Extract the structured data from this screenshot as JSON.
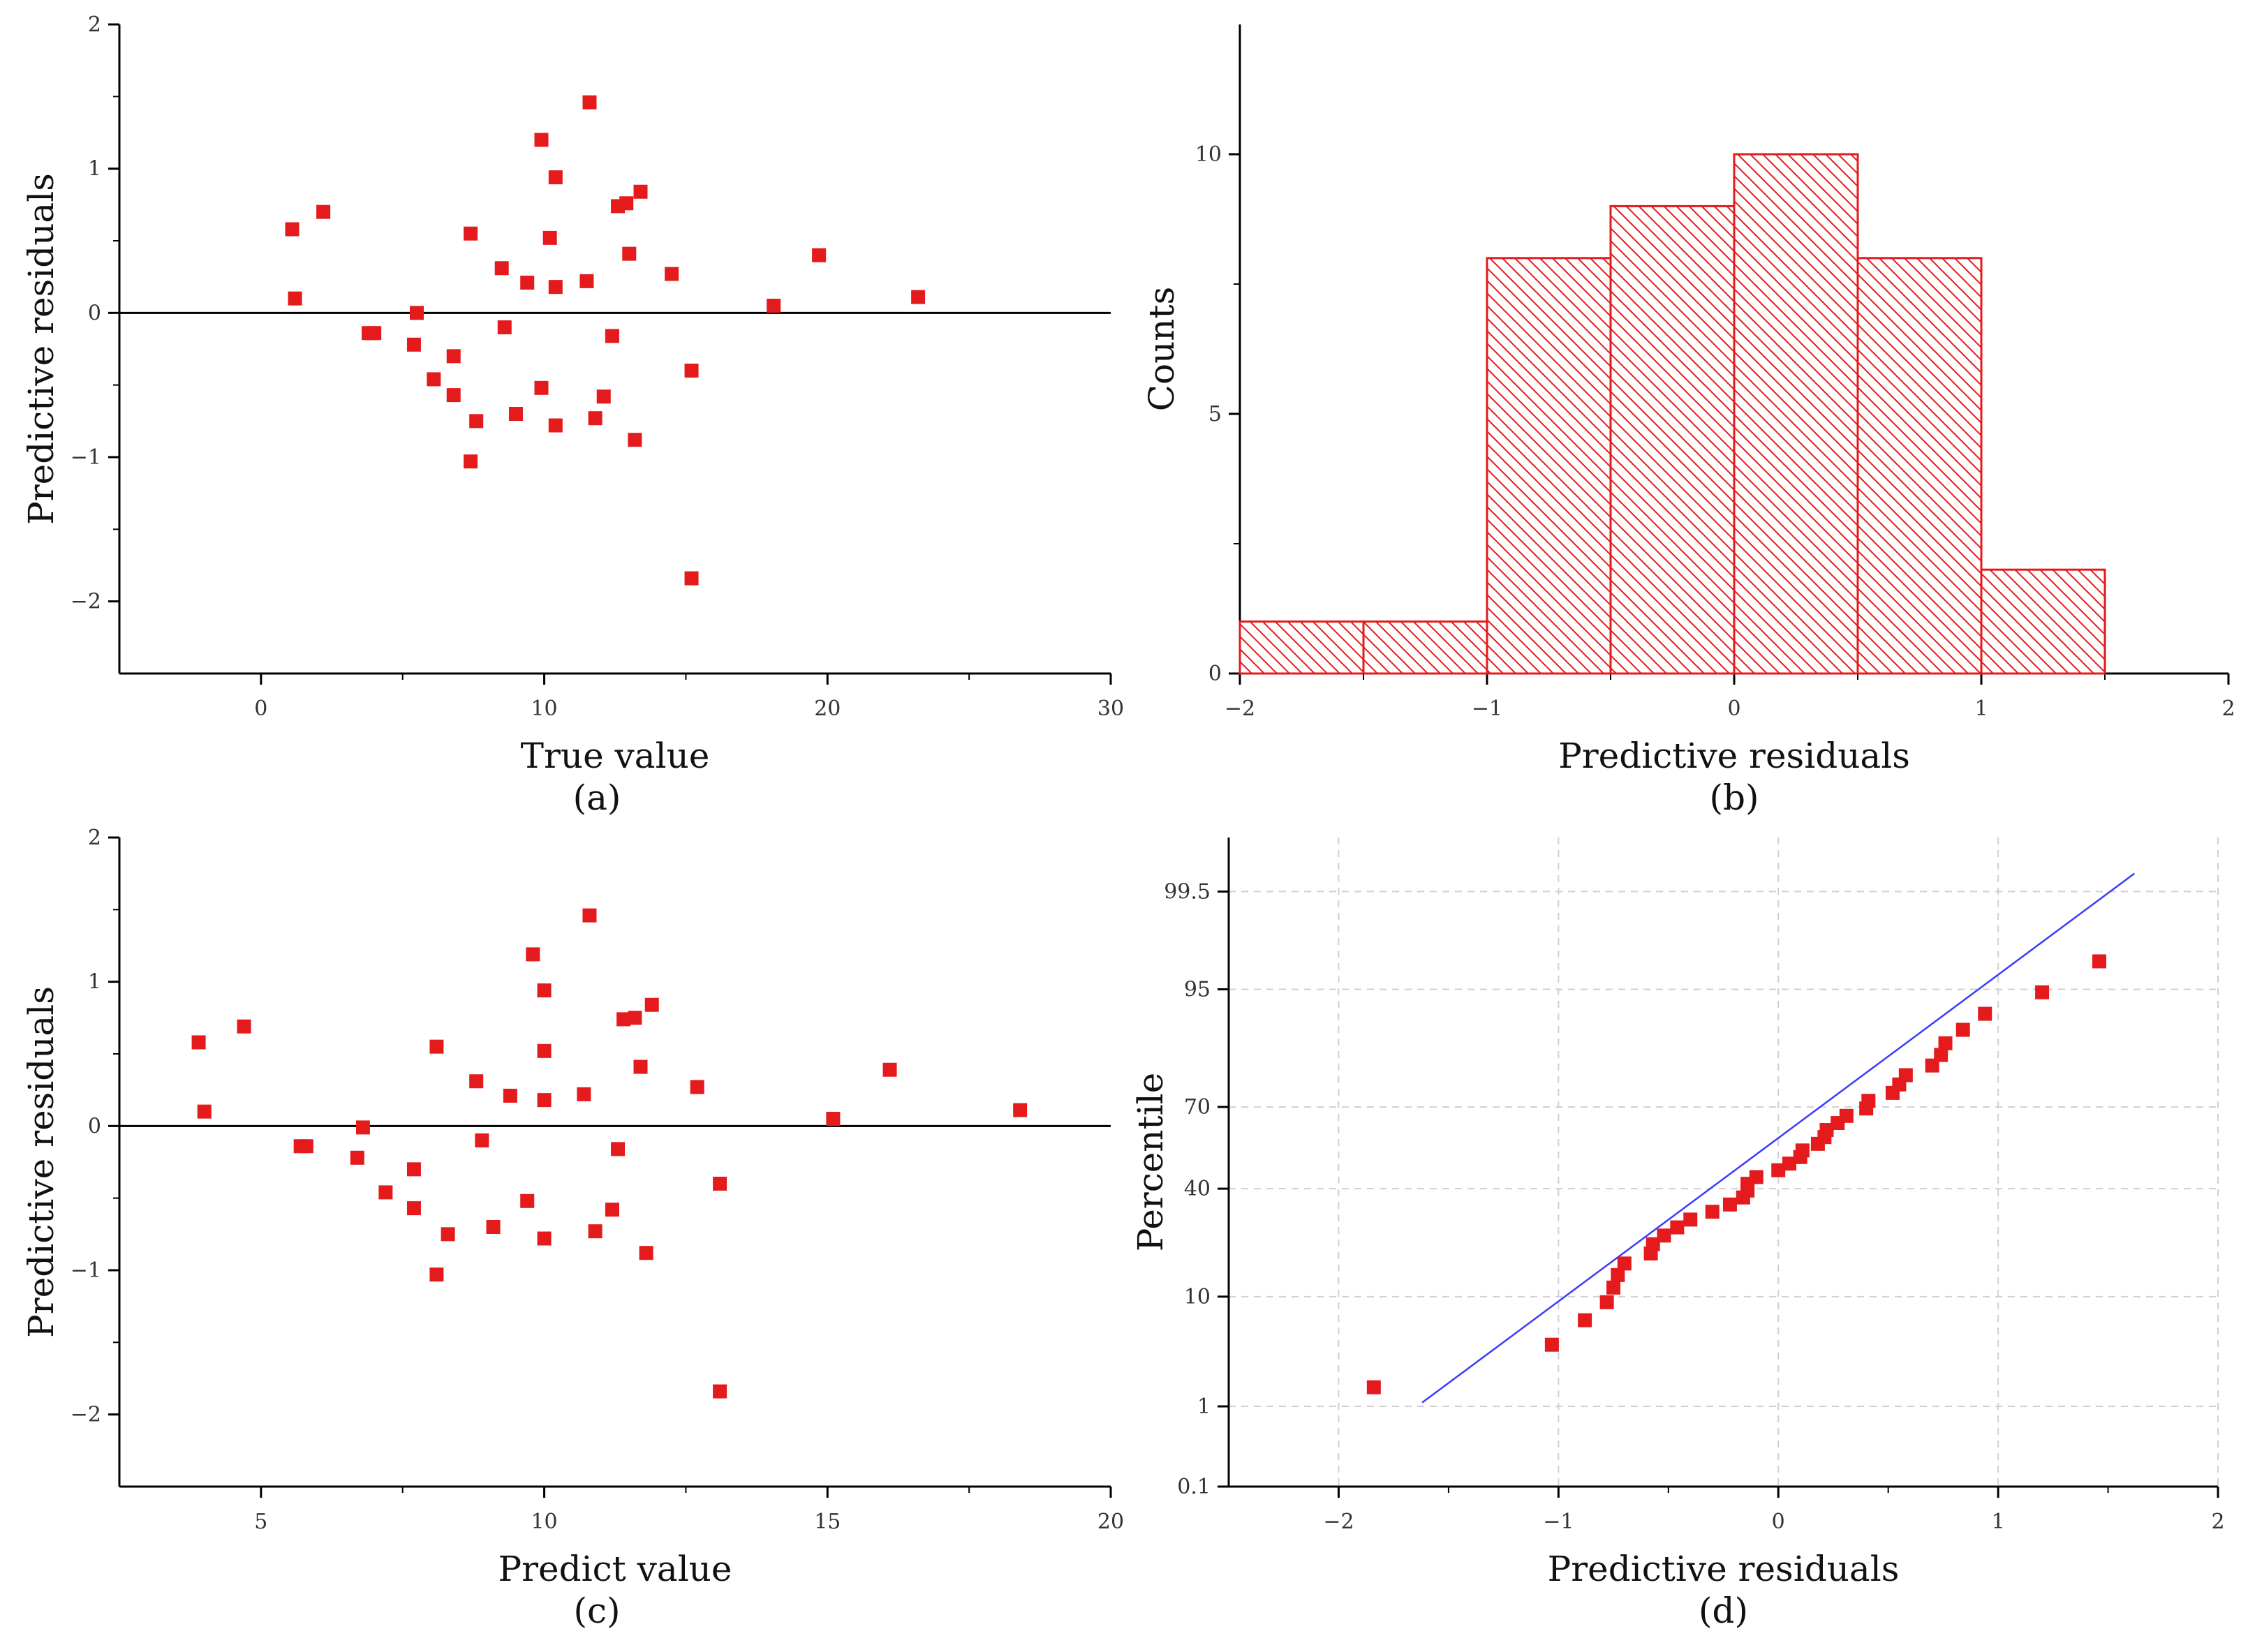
{
  "colors": {
    "marker": "#e41a1c",
    "axis": "#000000",
    "fitline": "#3b3bff",
    "grid": "#d0d0d0"
  },
  "chart_data": [
    {
      "type": "scatter",
      "panel_label": "(a)",
      "xlabel": "True value",
      "ylabel": "Predictive residuals",
      "xlim": [
        -5,
        30
      ],
      "ylim": [
        -2.5,
        2
      ],
      "xticks": [
        0,
        10,
        20,
        30
      ],
      "yticks": [
        -2,
        -1,
        0,
        1,
        2
      ],
      "xtick_labels": [
        "0",
        "10",
        "20",
        "30"
      ],
      "ytick_labels": [
        "−2",
        "−1",
        "0",
        "1",
        "2"
      ],
      "zero_line": true,
      "points": [
        [
          1.1,
          0.58
        ],
        [
          1.2,
          0.1
        ],
        [
          2.2,
          0.7
        ],
        [
          3.8,
          -0.14
        ],
        [
          4.0,
          -0.14
        ],
        [
          5.4,
          -0.22
        ],
        [
          5.5,
          0.0
        ],
        [
          6.1,
          -0.46
        ],
        [
          6.8,
          -0.57
        ],
        [
          6.8,
          -0.3
        ],
        [
          7.4,
          0.55
        ],
        [
          7.4,
          -1.03
        ],
        [
          7.6,
          -0.75
        ],
        [
          8.5,
          0.31
        ],
        [
          8.6,
          -0.1
        ],
        [
          9.0,
          -0.7
        ],
        [
          9.4,
          0.21
        ],
        [
          9.9,
          1.2
        ],
        [
          9.9,
          -0.52
        ],
        [
          10.2,
          0.52
        ],
        [
          10.4,
          0.94
        ],
        [
          10.4,
          0.18
        ],
        [
          10.4,
          -0.78
        ],
        [
          11.5,
          0.22
        ],
        [
          11.6,
          1.46
        ],
        [
          11.8,
          -0.73
        ],
        [
          12.1,
          -0.58
        ],
        [
          12.4,
          -0.16
        ],
        [
          12.6,
          0.74
        ],
        [
          12.9,
          0.76
        ],
        [
          13.0,
          0.41
        ],
        [
          13.2,
          -0.88
        ],
        [
          13.4,
          0.84
        ],
        [
          14.5,
          0.27
        ],
        [
          15.2,
          -0.4
        ],
        [
          15.2,
          -1.84
        ],
        [
          18.1,
          0.05
        ],
        [
          19.7,
          0.4
        ],
        [
          23.2,
          0.11
        ]
      ]
    },
    {
      "type": "bar",
      "panel_label": "(b)",
      "xlabel": "Predictive residuals",
      "ylabel": "Counts",
      "xlim": [
        -2,
        2
      ],
      "ylim": [
        0,
        12.5
      ],
      "xticks": [
        -2,
        -1,
        0,
        1,
        2
      ],
      "yticks": [
        0,
        5,
        10
      ],
      "xtick_labels": [
        "−2",
        "−1",
        "0",
        "1",
        "2"
      ],
      "ytick_labels": [
        "0",
        "5",
        "10"
      ],
      "bin_edges": [
        -2,
        -1.5,
        -1,
        -0.5,
        0,
        0.5,
        1,
        1.5
      ],
      "values": [
        1,
        1,
        8,
        9,
        10,
        8,
        2
      ]
    },
    {
      "type": "scatter",
      "panel_label": "(c)",
      "xlabel": "Predict value",
      "ylabel": "Predictive residuals",
      "xlim": [
        2.5,
        20
      ],
      "ylim": [
        -2.5,
        2
      ],
      "xticks": [
        5,
        10,
        15,
        20
      ],
      "yticks": [
        -2,
        -1,
        0,
        1,
        2
      ],
      "xtick_labels": [
        "5",
        "10",
        "15",
        "20"
      ],
      "ytick_labels": [
        "−2",
        "−1",
        "0",
        "1",
        "2"
      ],
      "zero_line": true,
      "points": [
        [
          3.9,
          0.58
        ],
        [
          4.0,
          0.1
        ],
        [
          4.7,
          0.69
        ],
        [
          5.7,
          -0.14
        ],
        [
          5.8,
          -0.14
        ],
        [
          6.7,
          -0.22
        ],
        [
          6.8,
          -0.01
        ],
        [
          7.2,
          -0.46
        ],
        [
          7.7,
          -0.3
        ],
        [
          7.7,
          -0.57
        ],
        [
          8.1,
          0.55
        ],
        [
          8.1,
          -1.03
        ],
        [
          8.3,
          -0.75
        ],
        [
          8.8,
          0.31
        ],
        [
          8.9,
          -0.1
        ],
        [
          9.1,
          -0.7
        ],
        [
          9.4,
          0.21
        ],
        [
          9.7,
          -0.52
        ],
        [
          9.8,
          1.19
        ],
        [
          10.0,
          0.52
        ],
        [
          10.0,
          0.94
        ],
        [
          10.0,
          0.18
        ],
        [
          10.0,
          -0.78
        ],
        [
          10.7,
          0.22
        ],
        [
          10.8,
          1.46
        ],
        [
          10.9,
          -0.73
        ],
        [
          11.2,
          -0.58
        ],
        [
          11.3,
          -0.16
        ],
        [
          11.4,
          0.74
        ],
        [
          11.6,
          0.75
        ],
        [
          11.7,
          0.41
        ],
        [
          11.8,
          -0.88
        ],
        [
          11.9,
          0.84
        ],
        [
          12.7,
          0.27
        ],
        [
          13.1,
          -0.4
        ],
        [
          13.1,
          -1.84
        ],
        [
          15.1,
          0.05
        ],
        [
          16.1,
          0.39
        ],
        [
          18.4,
          0.11
        ]
      ]
    },
    {
      "type": "scatter",
      "subtype": "normal-probability",
      "panel_label": "(d)",
      "xlabel": "Predictive residuals",
      "ylabel": "Percentile",
      "xlim": [
        -2.5,
        2
      ],
      "xticks": [
        -2,
        -1,
        0,
        1,
        2
      ],
      "xtick_labels": [
        "−2",
        "−1",
        "0",
        "1",
        "2"
      ],
      "ylim_percentile": [
        0.1,
        99.9
      ],
      "yticks": [
        0.1,
        1,
        10,
        40,
        70,
        95,
        99.5
      ],
      "ytick_labels": [
        "0.1",
        "1",
        "10",
        "40",
        "70",
        "95",
        "99.5"
      ],
      "grid": true,
      "fit_line": {
        "x": [
          -1.62,
          1.62
        ],
        "percentile": [
          1.1,
          99.7
        ]
      },
      "points": [
        [
          -1.84,
          1.6
        ],
        [
          -1.03,
          4.1
        ],
        [
          -0.88,
          6.6
        ],
        [
          -0.78,
          9.1
        ],
        [
          -0.75,
          11.6
        ],
        [
          -0.73,
          14.1
        ],
        [
          -0.7,
          16.7
        ],
        [
          -0.58,
          19.2
        ],
        [
          -0.57,
          21.7
        ],
        [
          -0.52,
          24.2
        ],
        [
          -0.46,
          26.7
        ],
        [
          -0.4,
          29.2
        ],
        [
          -0.3,
          31.8
        ],
        [
          -0.22,
          34.3
        ],
        [
          -0.16,
          36.8
        ],
        [
          -0.14,
          39.3
        ],
        [
          -0.14,
          41.8
        ],
        [
          -0.1,
          44.3
        ],
        [
          0.0,
          46.9
        ],
        [
          0.05,
          49.4
        ],
        [
          0.1,
          51.9
        ],
        [
          0.11,
          54.4
        ],
        [
          0.18,
          56.9
        ],
        [
          0.21,
          59.4
        ],
        [
          0.22,
          62.0
        ],
        [
          0.27,
          64.5
        ],
        [
          0.31,
          67.0
        ],
        [
          0.4,
          69.5
        ],
        [
          0.41,
          72.0
        ],
        [
          0.52,
          74.5
        ],
        [
          0.55,
          77.0
        ],
        [
          0.58,
          79.6
        ],
        [
          0.7,
          82.1
        ],
        [
          0.74,
          84.6
        ],
        [
          0.76,
          87.1
        ],
        [
          0.84,
          89.6
        ],
        [
          0.94,
          92.1
        ],
        [
          1.2,
          94.7
        ],
        [
          1.46,
          97.2
        ]
      ]
    }
  ]
}
